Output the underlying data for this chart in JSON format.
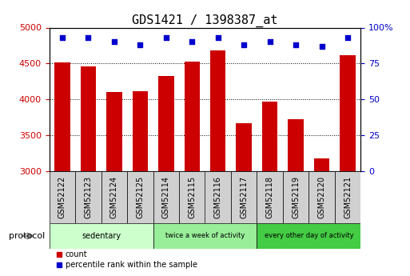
{
  "title": "GDS1421 / 1398387_at",
  "samples": [
    "GSM52122",
    "GSM52123",
    "GSM52124",
    "GSM52125",
    "GSM52114",
    "GSM52115",
    "GSM52116",
    "GSM52117",
    "GSM52118",
    "GSM52119",
    "GSM52120",
    "GSM52121"
  ],
  "counts": [
    4520,
    4460,
    4100,
    4110,
    4320,
    4530,
    4680,
    3670,
    3970,
    3720,
    3180,
    4610
  ],
  "percentile_ranks": [
    93,
    93,
    90,
    88,
    93,
    90,
    93,
    88,
    90,
    88,
    87,
    93
  ],
  "bar_color": "#cc0000",
  "dot_color": "#0000cc",
  "ylim_left": [
    3000,
    5000
  ],
  "ylim_right": [
    0,
    100
  ],
  "yticks_left": [
    3000,
    3500,
    4000,
    4500,
    5000
  ],
  "yticks_right": [
    0,
    25,
    50,
    75,
    100
  ],
  "ytick_right_labels": [
    "0",
    "25",
    "50",
    "75",
    "100%"
  ],
  "groups": [
    {
      "label": "sedentary",
      "start": 0,
      "end": 4,
      "color": "#ccffcc"
    },
    {
      "label": "twice a week of activity",
      "start": 4,
      "end": 8,
      "color": "#99ee99"
    },
    {
      "label": "every other day of activity",
      "start": 8,
      "end": 12,
      "color": "#44cc44"
    }
  ],
  "protocol_label": "protocol",
  "legend_count_label": "count",
  "legend_pct_label": "percentile rank within the sample",
  "background_color": "#ffffff",
  "plot_bg_color": "#ffffff",
  "sample_box_color": "#d0d0d0",
  "title_fontsize": 11,
  "axis_label_color_left": "#cc0000",
  "axis_label_color_right": "#0000cc",
  "tick_fontsize": 8,
  "sample_fontsize": 7
}
